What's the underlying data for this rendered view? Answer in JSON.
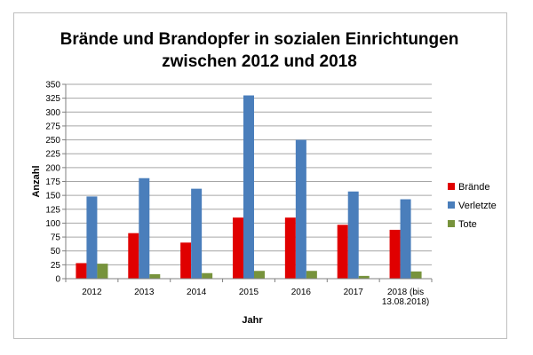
{
  "chart_data": {
    "type": "bar",
    "title_lines": [
      "Brände und Brandopfer in sozialen Einrichtungen",
      "zwischen 2012 und 2018"
    ],
    "xlabel": "Jahr",
    "ylabel": "Anzahl",
    "ylim": [
      0,
      350
    ],
    "ytick_step": 25,
    "grid": true,
    "legend_position": "right",
    "categories": [
      [
        "2012"
      ],
      [
        "2013"
      ],
      [
        "2014"
      ],
      [
        "2015"
      ],
      [
        "2016"
      ],
      [
        "2017"
      ],
      [
        "2018 (bis",
        "13.08.2018)"
      ]
    ],
    "series": [
      {
        "name": "Brände",
        "color": "#e00000",
        "values": [
          28,
          82,
          65,
          110,
          110,
          97,
          88
        ]
      },
      {
        "name": "Verletzte",
        "color": "#4a7ebb",
        "values": [
          148,
          181,
          162,
          330,
          250,
          157,
          143
        ]
      },
      {
        "name": "Tote",
        "color": "#77933c",
        "values": [
          27,
          8,
          10,
          14,
          14,
          5,
          13
        ]
      }
    ]
  }
}
